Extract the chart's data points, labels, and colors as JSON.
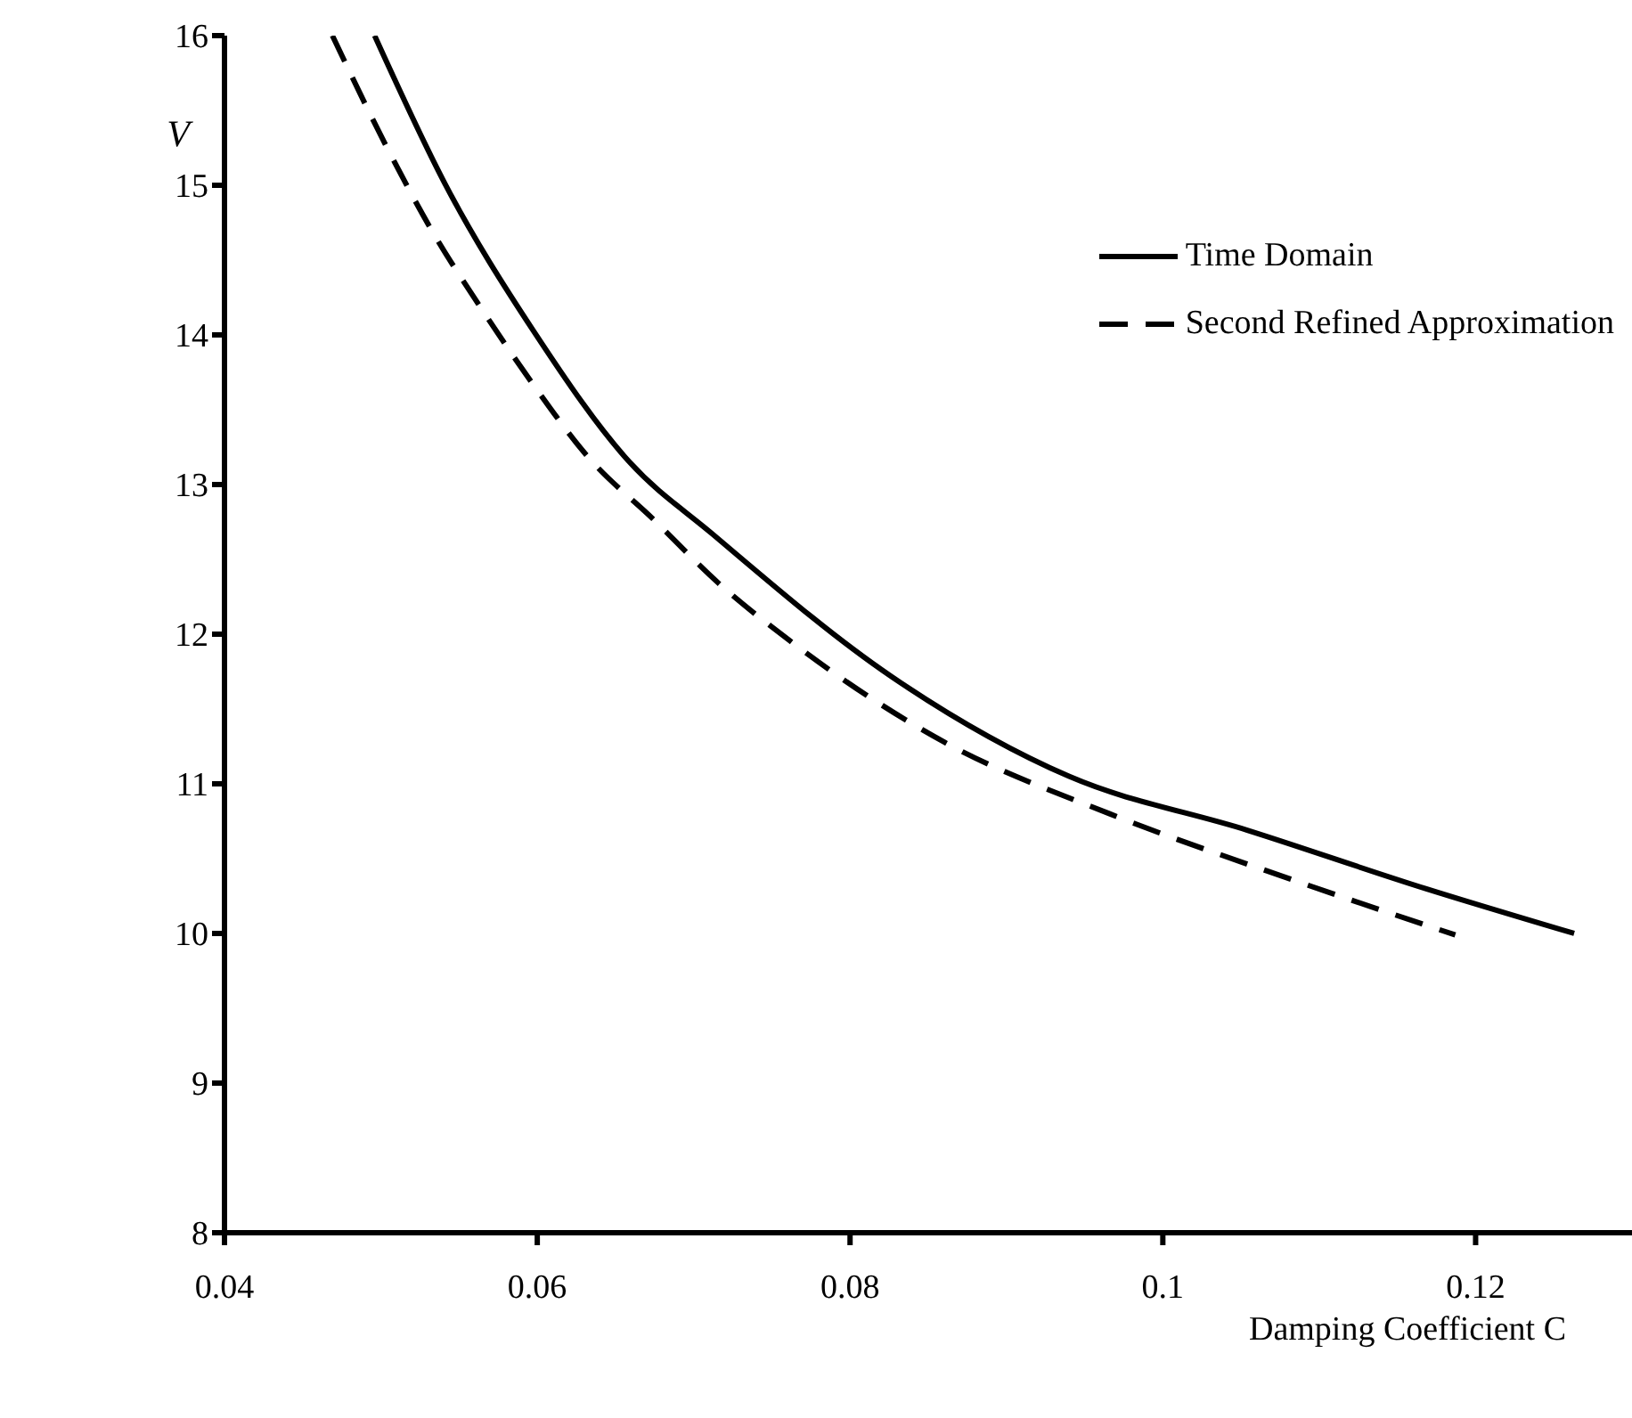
{
  "chart_data": {
    "type": "line",
    "xlabel": "Damping Coefficient C",
    "ylabel": "V",
    "xlim": [
      0.04,
      0.13
    ],
    "ylim": [
      8,
      16
    ],
    "xticks": [
      0.04,
      0.06,
      0.08,
      {
        "value": 0.1,
        "label": "0.1"
      },
      0.12
    ],
    "yticks": [
      8,
      9,
      10,
      11,
      12,
      13,
      14,
      15,
      16
    ],
    "grid": false,
    "legend": "top right",
    "marker": "none",
    "series": [
      {
        "name": "Time Domain",
        "color": "#000000",
        "line_style": "solid",
        "x": [
          0.0496,
          0.0541,
          0.0598,
          0.0659,
          0.0712,
          0.0826,
          0.094,
          0.1054,
          0.1168,
          0.1263
        ],
        "values": [
          16,
          15.01,
          14.02,
          13.15,
          12.67,
          11.72,
          11.05,
          10.69,
          10.3,
          10
        ]
      },
      {
        "name": "Second Refined Approximation",
        "color": "#000000",
        "line_style": "dashed",
        "x": [
          0.0469,
          0.0504,
          0.0533,
          0.0564,
          0.0598,
          0.0632,
          0.0675,
          0.0716,
          0.0761,
          0.086,
          0.0966,
          0.1077,
          0.1187
        ],
        "values": [
          16,
          15.25,
          14.69,
          14.18,
          13.66,
          13.19,
          12.76,
          12.34,
          11.96,
          11.28,
          10.8,
          10.38,
          9.99
        ]
      }
    ]
  }
}
